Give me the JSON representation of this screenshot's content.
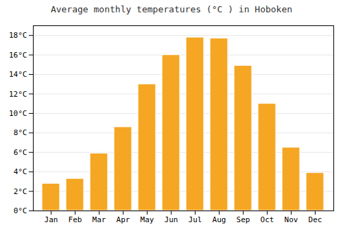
{
  "chart_data": {
    "type": "bar",
    "title": "Average monthly temperatures (°C ) in Hoboken",
    "categories": [
      "Jan",
      "Feb",
      "Mar",
      "Apr",
      "May",
      "Jun",
      "Jul",
      "Aug",
      "Sep",
      "Oct",
      "Nov",
      "Dec"
    ],
    "values": [
      2.8,
      3.3,
      5.9,
      8.6,
      13.0,
      16.0,
      17.8,
      17.7,
      14.9,
      11.0,
      6.5,
      3.9
    ],
    "color": "#F5A623",
    "ylim": [
      0,
      19
    ],
    "yticks": [
      {
        "value": 0,
        "label": "0°C"
      },
      {
        "value": 2,
        "label": "2°C"
      },
      {
        "value": 4,
        "label": "4°C"
      },
      {
        "value": 6,
        "label": "6°C"
      },
      {
        "value": 8,
        "label": "8°C"
      },
      {
        "value": 10,
        "label": "10°C"
      },
      {
        "value": 12,
        "label": "12°C"
      },
      {
        "value": 14,
        "label": "14°C"
      },
      {
        "value": 16,
        "label": "16°C"
      },
      {
        "value": 18,
        "label": "18°C"
      }
    ],
    "grid": true
  }
}
